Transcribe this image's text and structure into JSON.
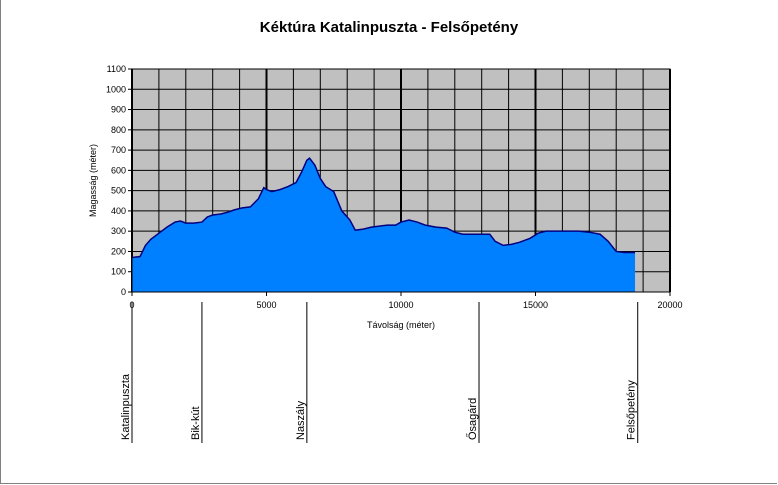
{
  "chart_data": {
    "type": "area",
    "title": "Kéktúra  Katalinpuszta - Felsőpetény",
    "xlabel": "Távolság (méter)",
    "ylabel": "Magasság (méter)",
    "xlim": [
      0,
      20000
    ],
    "ylim": [
      0,
      1100
    ],
    "x_ticks": [
      0,
      5000,
      10000,
      15000,
      20000
    ],
    "y_ticks": [
      0,
      100,
      200,
      300,
      400,
      500,
      600,
      700,
      800,
      900,
      1000,
      1100
    ],
    "grid": true,
    "colors": {
      "plot_bg": "#c0c0c0",
      "fill": "#0080ff",
      "line": "#000080",
      "grid": "#000000"
    },
    "series": [
      {
        "x": [
          0,
          300,
          500,
          700,
          1000,
          1300,
          1600,
          1800,
          2000,
          2300,
          2600,
          2800,
          3000,
          3300,
          3600,
          3800,
          4100,
          4400,
          4700,
          4900,
          5000,
          5200,
          5500,
          5800,
          6100,
          6300,
          6500,
          6600,
          6800,
          7000,
          7200,
          7500,
          7800,
          8100,
          8300,
          8600,
          8900,
          9200,
          9500,
          9800,
          10000,
          10300,
          10600,
          10900,
          11300,
          11700,
          12000,
          12300,
          12700,
          13000,
          13300,
          13500,
          13800,
          14100,
          14400,
          14800,
          15100,
          15400,
          15800,
          16200,
          16600,
          17000,
          17400,
          17700,
          18000,
          18300,
          18700
        ],
        "y": [
          170,
          175,
          230,
          260,
          290,
          320,
          345,
          350,
          340,
          340,
          345,
          370,
          380,
          385,
          395,
          405,
          415,
          420,
          460,
          515,
          505,
          495,
          505,
          520,
          540,
          590,
          650,
          660,
          625,
          560,
          520,
          495,
          400,
          355,
          305,
          310,
          320,
          325,
          330,
          330,
          345,
          355,
          345,
          330,
          320,
          315,
          295,
          285,
          285,
          285,
          285,
          250,
          230,
          235,
          245,
          265,
          290,
          300,
          300,
          300,
          300,
          295,
          285,
          250,
          200,
          195,
          195
        ]
      }
    ],
    "landmarks": [
      {
        "x": 0,
        "label": "Katalinpuszta"
      },
      {
        "x": 2600,
        "label": "Bik-kút"
      },
      {
        "x": 6500,
        "label": "Naszály"
      },
      {
        "x": 12900,
        "label": "Ősagárd"
      },
      {
        "x": 18800,
        "label": "Felsőpetény"
      }
    ]
  }
}
